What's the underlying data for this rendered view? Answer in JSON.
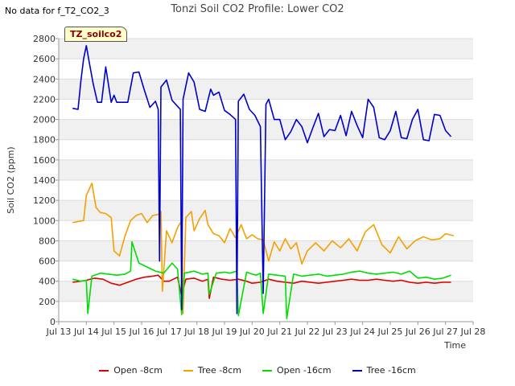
{
  "header": {
    "nodata_label": "No data for f_T2_CO2_3",
    "site_badge": "TZ_soilco2"
  },
  "chart_data": {
    "type": "line",
    "title": "Tonzi Soil CO2 Profile: Lower CO2",
    "xlabel": "Time",
    "ylabel": "Soil CO2 (ppm)",
    "xlim": [
      13,
      28
    ],
    "ylim": [
      0,
      2800
    ],
    "x_ticks": [
      13,
      14,
      15,
      16,
      17,
      18,
      19,
      20,
      21,
      22,
      23,
      24,
      25,
      26,
      27,
      28
    ],
    "x_tick_labels": [
      "Jul 13",
      "Jul 14",
      "Jul 15",
      "Jul 16",
      "Jul 17",
      "Jul 18",
      "Jul 19",
      "Jul 20",
      "Jul 21",
      "Jul 22",
      "Jul 23",
      "Jul 24",
      "Jul 25",
      "Jul 26",
      "Jul 27",
      "Jul 28"
    ],
    "y_ticks": [
      0,
      200,
      400,
      600,
      800,
      1000,
      1200,
      1400,
      1600,
      1800,
      2000,
      2200,
      2400,
      2600,
      2800
    ],
    "y_tick_labels": [
      "0",
      "200",
      "400",
      "600",
      "800",
      "1000",
      "1200",
      "1400",
      "1600",
      "1800",
      "2000",
      "2200",
      "2400",
      "2600",
      "2800"
    ],
    "grid": true,
    "legend_position": "bottom",
    "series": [
      {
        "name": "Open -8cm",
        "color": "#dd0000",
        "x": [
          13.5,
          13.8,
          14.0,
          14.3,
          14.6,
          14.9,
          15.2,
          15.5,
          15.8,
          16.1,
          16.4,
          16.6,
          16.8,
          17.0,
          17.3,
          17.45,
          17.6,
          17.9,
          18.2,
          18.4,
          18.45,
          18.6,
          18.9,
          19.2,
          19.5,
          19.8,
          20.0,
          20.3,
          20.6,
          20.9,
          21.2,
          21.5,
          21.8,
          22.1,
          22.4,
          22.7,
          23.0,
          23.3,
          23.6,
          23.9,
          24.2,
          24.5,
          24.8,
          25.1,
          25.4,
          25.7,
          26.0,
          26.3,
          26.6,
          26.9,
          27.2
        ],
        "values": [
          390,
          400,
          410,
          430,
          420,
          380,
          360,
          390,
          420,
          440,
          450,
          460,
          400,
          400,
          440,
          260,
          420,
          430,
          400,
          420,
          230,
          440,
          420,
          410,
          420,
          400,
          380,
          390,
          420,
          400,
          390,
          380,
          400,
          390,
          380,
          390,
          400,
          410,
          420,
          410,
          410,
          420,
          410,
          400,
          410,
          390,
          380,
          390,
          380,
          390,
          390
        ]
      },
      {
        "name": "Tree -8cm",
        "color": "#f5a000",
        "x": [
          13.5,
          13.7,
          13.9,
          14.0,
          14.2,
          14.35,
          14.5,
          14.7,
          14.9,
          15.0,
          15.2,
          15.4,
          15.6,
          15.8,
          16.0,
          16.2,
          16.4,
          16.6,
          16.7,
          16.75,
          16.9,
          17.1,
          17.3,
          17.45,
          17.5,
          17.6,
          17.8,
          17.9,
          18.1,
          18.3,
          18.4,
          18.6,
          18.8,
          19.0,
          19.2,
          19.4,
          19.6,
          19.8,
          20.0,
          20.2,
          20.4,
          20.6,
          20.8,
          21.0,
          21.2,
          21.4,
          21.6,
          21.8,
          22.0,
          22.3,
          22.6,
          22.9,
          23.2,
          23.5,
          23.8,
          24.1,
          24.4,
          24.7,
          25.0,
          25.3,
          25.6,
          25.9,
          26.2,
          26.5,
          26.8,
          27.0,
          27.3
        ],
        "values": [
          980,
          990,
          1000,
          1250,
          1370,
          1130,
          1080,
          1070,
          1030,
          700,
          650,
          850,
          1000,
          1050,
          1070,
          980,
          1050,
          1060,
          1090,
          300,
          900,
          780,
          930,
          1000,
          80,
          1030,
          1090,
          900,
          1020,
          1100,
          960,
          870,
          850,
          780,
          920,
          830,
          960,
          820,
          860,
          820,
          810,
          600,
          790,
          700,
          820,
          720,
          780,
          570,
          700,
          780,
          700,
          800,
          730,
          820,
          700,
          890,
          960,
          760,
          680,
          840,
          720,
          800,
          840,
          810,
          820,
          870,
          850
        ]
      },
      {
        "name": "Open -16cm",
        "color": "#00dd00",
        "x": [
          13.5,
          13.8,
          14.0,
          14.05,
          14.2,
          14.5,
          14.8,
          15.1,
          15.4,
          15.6,
          15.65,
          15.9,
          16.2,
          16.5,
          16.8,
          17.1,
          17.3,
          17.45,
          17.55,
          17.9,
          18.2,
          18.4,
          18.45,
          18.7,
          19.0,
          19.2,
          19.45,
          19.5,
          19.8,
          20.0,
          20.15,
          20.3,
          20.4,
          20.6,
          20.9,
          21.2,
          21.25,
          21.5,
          21.8,
          22.1,
          22.4,
          22.7,
          23.0,
          23.3,
          23.6,
          23.9,
          24.2,
          24.5,
          24.8,
          25.1,
          25.4,
          25.7,
          26.0,
          26.3,
          26.6,
          26.9,
          27.2
        ],
        "values": [
          420,
          400,
          410,
          80,
          450,
          480,
          470,
          460,
          470,
          500,
          790,
          580,
          540,
          500,
          480,
          580,
          520,
          70,
          480,
          500,
          470,
          480,
          270,
          480,
          490,
          480,
          500,
          60,
          490,
          470,
          460,
          480,
          80,
          470,
          460,
          450,
          30,
          470,
          450,
          460,
          470,
          450,
          460,
          470,
          490,
          500,
          480,
          470,
          480,
          490,
          470,
          500,
          430,
          440,
          420,
          430,
          460
        ]
      },
      {
        "name": "Tree -16cm",
        "color": "#0000cc",
        "x": [
          13.5,
          13.7,
          13.8,
          13.9,
          14.0,
          14.1,
          14.25,
          14.4,
          14.55,
          14.7,
          14.9,
          15.0,
          15.1,
          15.3,
          15.5,
          15.7,
          15.9,
          16.1,
          16.3,
          16.5,
          16.6,
          16.65,
          16.7,
          16.9,
          17.1,
          17.3,
          17.4,
          17.45,
          17.5,
          17.7,
          17.9,
          18.1,
          18.3,
          18.5,
          18.6,
          18.8,
          19.0,
          19.2,
          19.4,
          19.45,
          19.5,
          19.7,
          19.9,
          20.1,
          20.3,
          20.4,
          20.5,
          20.6,
          20.8,
          21.0,
          21.2,
          21.4,
          21.6,
          21.8,
          22.0,
          22.2,
          22.4,
          22.6,
          22.8,
          23.0,
          23.2,
          23.4,
          23.6,
          23.8,
          24.0,
          24.2,
          24.4,
          24.6,
          24.8,
          25.0,
          25.2,
          25.4,
          25.6,
          25.8,
          26.0,
          26.2,
          26.4,
          26.6,
          26.8,
          27.0,
          27.2
        ],
        "values": [
          2110,
          2100,
          2380,
          2600,
          2730,
          2570,
          2350,
          2170,
          2170,
          2520,
          2170,
          2240,
          2170,
          2170,
          2170,
          2460,
          2470,
          2290,
          2120,
          2180,
          2100,
          600,
          2320,
          2390,
          2190,
          2130,
          2100,
          120,
          2200,
          2460,
          2370,
          2100,
          2080,
          2300,
          2240,
          2270,
          2090,
          2050,
          2000,
          80,
          2180,
          2250,
          2100,
          2040,
          1930,
          280,
          2150,
          2200,
          2000,
          2000,
          1800,
          1880,
          2000,
          1930,
          1770,
          1920,
          2060,
          1830,
          1900,
          1890,
          2040,
          1840,
          2080,
          1940,
          1820,
          2200,
          2120,
          1820,
          1800,
          1890,
          2080,
          1820,
          1810,
          2000,
          2100,
          1800,
          1790,
          2050,
          2040,
          1890,
          1830
        ]
      }
    ]
  }
}
